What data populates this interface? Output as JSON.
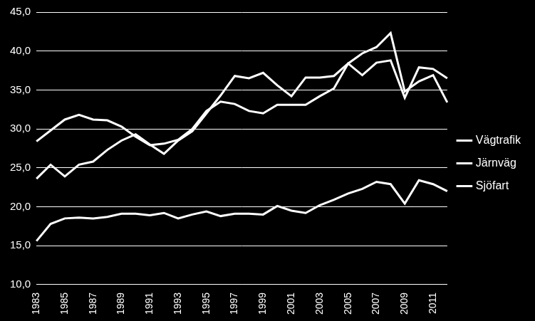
{
  "chart_data": {
    "type": "line",
    "categories": [
      "1983",
      null,
      "1985",
      null,
      "1987",
      null,
      "1989",
      null,
      "1991",
      null,
      "1993",
      null,
      "1995",
      null,
      "1997",
      null,
      "1999",
      null,
      "2001",
      null,
      "2003",
      null,
      "2005",
      null,
      "2007",
      null,
      "2009",
      null,
      "2011",
      null
    ],
    "series": [
      {
        "name": "Vägtrafik",
        "color": "#ffffff",
        "values": [
          28.4,
          29.8,
          31.2,
          31.8,
          31.2,
          31.1,
          30.3,
          29.0,
          27.9,
          28.1,
          28.6,
          30.0,
          32.3,
          33.5,
          33.2,
          32.3,
          32.0,
          33.1,
          33.1,
          33.1,
          34.2,
          35.2,
          38.4,
          36.9,
          38.5,
          38.8,
          34.0,
          37.9,
          37.7,
          36.5
        ]
      },
      {
        "name": "Järnväg",
        "color": "#ffffff",
        "values": [
          23.6,
          25.4,
          23.9,
          25.4,
          25.8,
          27.3,
          28.5,
          29.3,
          28.0,
          26.8,
          28.5,
          29.7,
          32.0,
          34.3,
          36.8,
          36.5,
          37.2,
          35.6,
          34.2,
          36.6,
          36.6,
          36.8,
          38.4,
          39.7,
          40.5,
          42.3,
          34.8,
          36.1,
          36.9,
          33.4
        ]
      },
      {
        "name": "Sjöfart",
        "color": "#ffffff",
        "values": [
          15.6,
          17.8,
          18.5,
          18.6,
          18.5,
          18.7,
          19.1,
          19.1,
          18.9,
          19.2,
          18.5,
          19.0,
          19.4,
          18.8,
          19.1,
          19.1,
          19.0,
          20.1,
          19.5,
          19.2,
          20.2,
          20.9,
          21.7,
          22.3,
          23.2,
          22.9,
          20.4,
          23.4,
          22.9,
          22.0
        ]
      }
    ],
    "ylim": [
      10,
      45
    ],
    "yticks": [
      {
        "value": 10,
        "label": "10,0"
      },
      {
        "value": 15,
        "label": "15,0"
      },
      {
        "value": 20,
        "label": "20,0"
      },
      {
        "value": 25,
        "label": "25,0"
      },
      {
        "value": 30,
        "label": "30,0"
      },
      {
        "value": 35,
        "label": "35,0"
      },
      {
        "value": 40,
        "label": "40,0"
      },
      {
        "value": 45,
        "label": "45,0"
      }
    ],
    "grid": true,
    "legend": "right"
  }
}
